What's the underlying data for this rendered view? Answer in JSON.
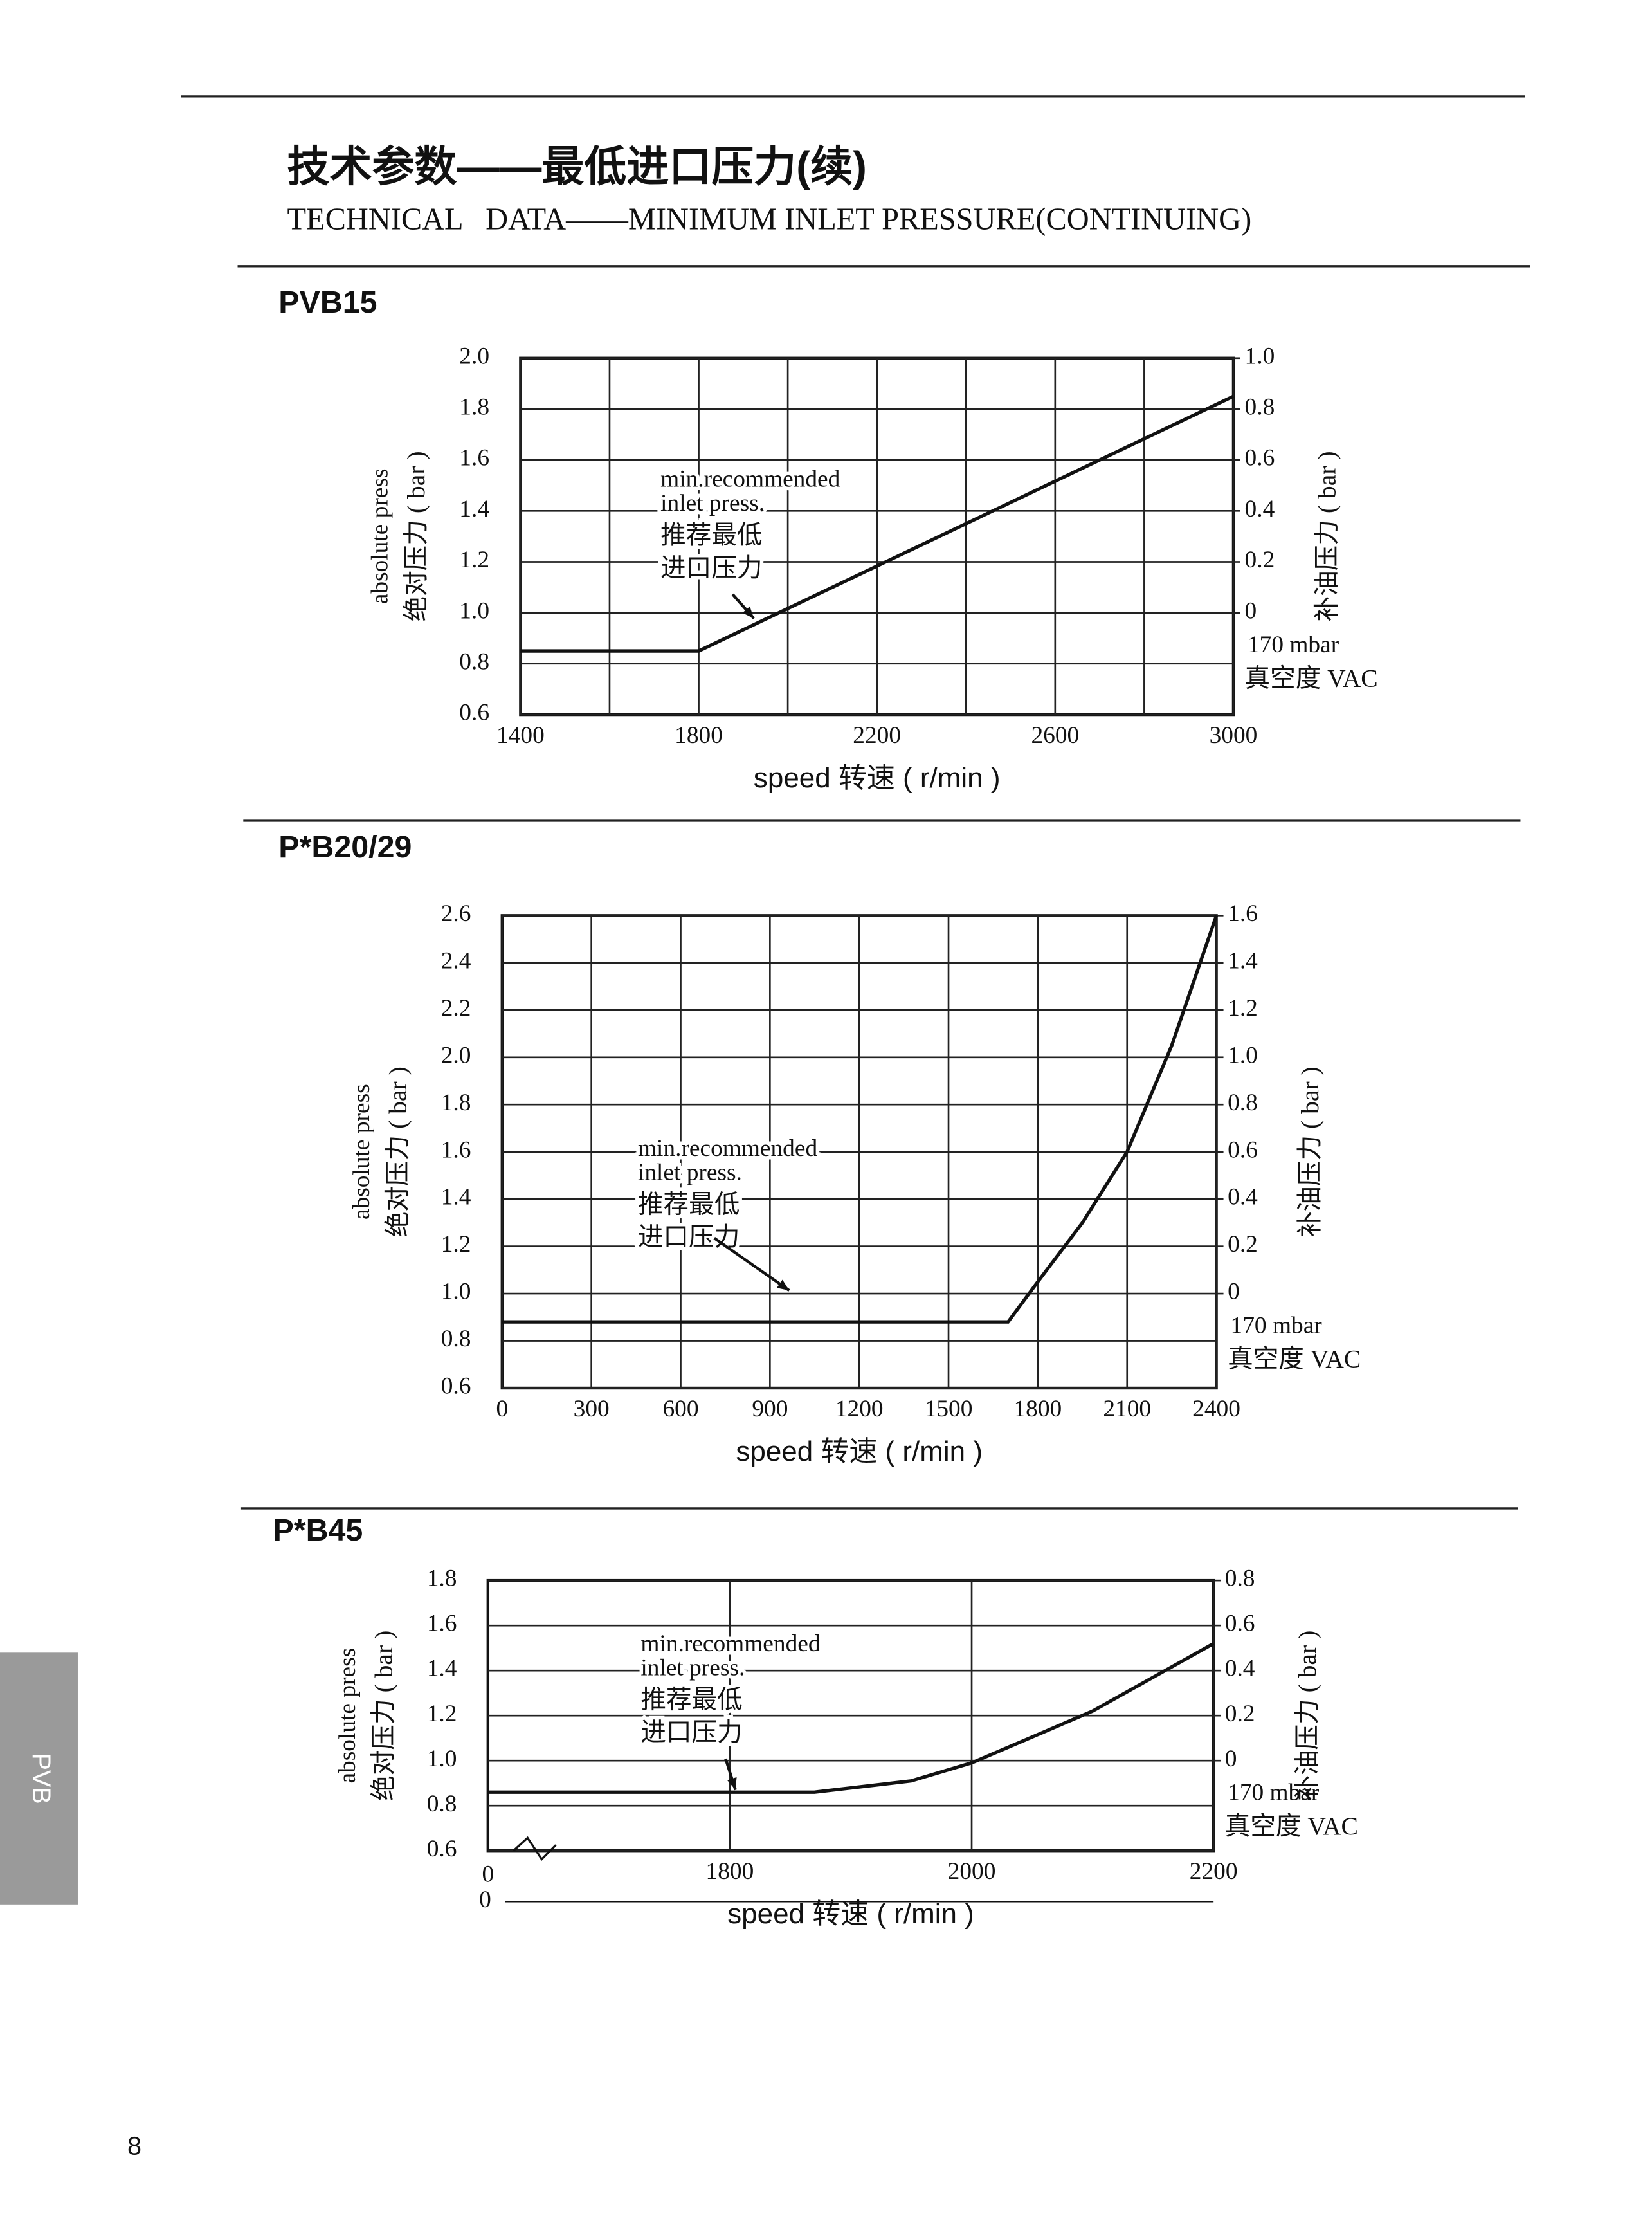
{
  "header": {
    "title": "技术参数——最低进口压力(续)",
    "subtitle": "TECHNICAL   DATA——MINIMUM INLET PRESSURE(CONTINUING)"
  },
  "side_tab": "PVB",
  "page_number": "8",
  "chart_data": [
    {
      "type": "line",
      "title": "PVB15",
      "color": "#111111",
      "x": [
        1400,
        1800,
        3000
      ],
      "values": [
        0.85,
        0.85,
        1.85
      ],
      "xlim": [
        1400,
        3000
      ],
      "xticks": [
        1400,
        1800,
        2200,
        2600,
        3000
      ],
      "xgrid": [
        1600,
        2000,
        2400,
        2800
      ],
      "ylim": [
        0.6,
        2.0
      ],
      "yticks": [
        0.6,
        0.8,
        {
          "value": 1,
          "label": "1.0"
        },
        1.2,
        1.4,
        1.6,
        1.8,
        {
          "value": 2,
          "label": "2.0"
        }
      ],
      "y2lim": [
        -0.4,
        1.0
      ],
      "y2ticks": [
        0,
        0.2,
        0.4,
        0.6,
        0.8,
        {
          "value": 1,
          "label": "1.0"
        }
      ],
      "xlabel": "speed 转速 ( r/min )",
      "ylabel": [
        "absolute press",
        "绝对压力 ( bar )"
      ],
      "y2label": "补油压力 ( bar )",
      "vacuum_label": [
        "170 mbar",
        "真空度 VAC"
      ],
      "annotations": [
        "min.recommended",
        "inlet press.",
        "推荐最低",
        "进口压力"
      ]
    },
    {
      "type": "line",
      "title": "P*B20/29",
      "color": "#111111",
      "x": [
        0,
        1700,
        1800,
        1950,
        2100,
        2250,
        2400
      ],
      "values": [
        0.88,
        0.88,
        1.05,
        1.3,
        1.6,
        2.05,
        2.6
      ],
      "xlim": [
        0,
        2400
      ],
      "xticks": [
        0,
        300,
        600,
        900,
        1200,
        1500,
        1800,
        2100,
        2400
      ],
      "ylim": [
        0.6,
        2.6
      ],
      "yticks": [
        0.6,
        0.8,
        {
          "value": 1,
          "label": "1.0"
        },
        1.2,
        1.4,
        1.6,
        1.8,
        {
          "value": 2,
          "label": "2.0"
        },
        2.2,
        2.4,
        2.6
      ],
      "y2lim": [
        -0.4,
        1.6
      ],
      "y2ticks": [
        0,
        0.2,
        0.4,
        0.6,
        0.8,
        {
          "value": 1,
          "label": "1.0"
        },
        1.2,
        1.4,
        1.6
      ],
      "xlabel": "speed 转速 ( r/min )",
      "ylabel": [
        "absolute press",
        "绝对压力 ( bar )"
      ],
      "y2label": "补油压力 ( bar )",
      "vacuum_label": [
        "170 mbar",
        "真空度 VAC"
      ],
      "annotations": [
        "min.recommended",
        "inlet press.",
        "推荐最低",
        "进口压力"
      ]
    },
    {
      "type": "line",
      "title": "P*B45",
      "color": "#111111",
      "x": [
        1600,
        1870,
        1950,
        2000,
        2100,
        2200
      ],
      "values": [
        0.86,
        0.86,
        0.91,
        0.99,
        1.22,
        1.52
      ],
      "xlim": [
        1600,
        2200
      ],
      "xticks": [
        1800,
        2000,
        2200
      ],
      "ylim": [
        0.6,
        1.8
      ],
      "yticks": [
        0.6,
        0.8,
        {
          "value": 1,
          "label": "1.0"
        },
        1.2,
        1.4,
        1.6,
        1.8
      ],
      "y2lim": [
        -0.4,
        0.8
      ],
      "y2ticks": [
        0,
        0.2,
        0.4,
        0.6,
        0.8
      ],
      "axis_break_labels": [
        "0",
        "0"
      ],
      "xlabel": "speed 转速 ( r/min )",
      "ylabel": [
        "absolute press",
        "绝对压力 ( bar )"
      ],
      "y2label": "补油压力 ( bar )",
      "vacuum_label": [
        "170 mbar",
        "真空度 VAC"
      ],
      "annotations": [
        "min.recommended",
        "inlet press.",
        "推荐最低",
        "进口压力"
      ]
    }
  ]
}
